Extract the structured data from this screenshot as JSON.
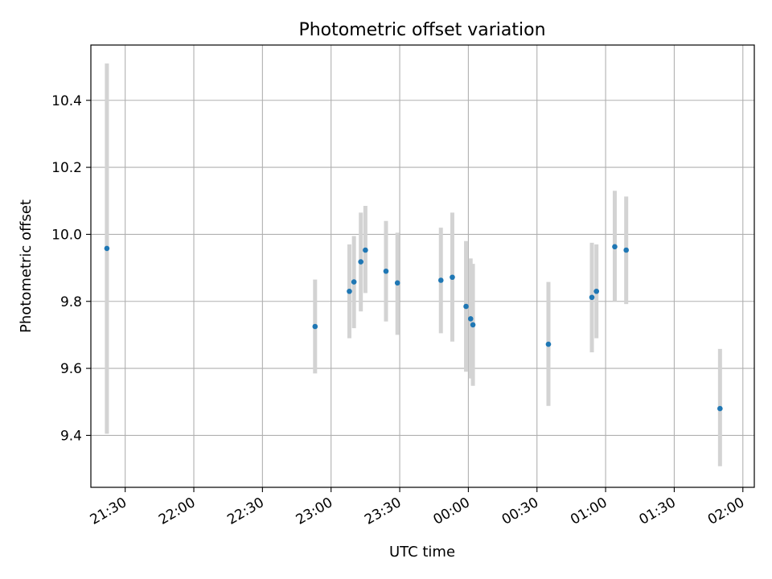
{
  "chart_data": {
    "type": "scatter",
    "title": "Photometric offset variation",
    "xlabel": "UTC time",
    "ylabel": "Photometric offset",
    "x_ticks": [
      "21:30",
      "22:00",
      "22:30",
      "23:00",
      "23:30",
      "00:00",
      "00:30",
      "01:00",
      "01:30",
      "02:00"
    ],
    "y_ticks": [
      "9.4",
      "9.6",
      "9.8",
      "10.0",
      "10.2",
      "10.4"
    ],
    "ylim": [
      9.245,
      10.565
    ],
    "xlim": [
      "21:15",
      "02:05"
    ],
    "grid": true,
    "point_color": "#1f77b4",
    "errorbar_color": "#d3d3d3",
    "points": [
      {
        "x": "21:22",
        "y": 9.958,
        "ylow": 9.405,
        "yhigh": 10.51
      },
      {
        "x": "22:53",
        "y": 9.725,
        "ylow": 9.585,
        "yhigh": 9.865
      },
      {
        "x": "23:08",
        "y": 9.83,
        "ylow": 9.69,
        "yhigh": 9.97
      },
      {
        "x": "23:10",
        "y": 9.858,
        "ylow": 9.72,
        "yhigh": 9.995
      },
      {
        "x": "23:13",
        "y": 9.918,
        "ylow": 9.77,
        "yhigh": 10.065
      },
      {
        "x": "23:15",
        "y": 9.953,
        "ylow": 9.825,
        "yhigh": 10.085
      },
      {
        "x": "23:24",
        "y": 9.89,
        "ylow": 9.74,
        "yhigh": 10.04
      },
      {
        "x": "23:29",
        "y": 9.855,
        "ylow": 9.7,
        "yhigh": 10.005
      },
      {
        "x": "23:48",
        "y": 9.863,
        "ylow": 9.705,
        "yhigh": 10.02
      },
      {
        "x": "23:53",
        "y": 9.872,
        "ylow": 9.68,
        "yhigh": 10.065
      },
      {
        "x": "23:59",
        "y": 9.785,
        "ylow": 9.59,
        "yhigh": 9.98
      },
      {
        "x": "00:01",
        "y": 9.748,
        "ylow": 9.57,
        "yhigh": 9.928
      },
      {
        "x": "00:02",
        "y": 9.73,
        "ylow": 9.548,
        "yhigh": 9.912
      },
      {
        "x": "00:35",
        "y": 9.672,
        "ylow": 9.488,
        "yhigh": 9.858
      },
      {
        "x": "00:54",
        "y": 9.812,
        "ylow": 9.648,
        "yhigh": 9.975
      },
      {
        "x": "00:56",
        "y": 9.83,
        "ylow": 9.69,
        "yhigh": 9.97
      },
      {
        "x": "01:04",
        "y": 9.963,
        "ylow": 9.8,
        "yhigh": 10.13
      },
      {
        "x": "01:09",
        "y": 9.953,
        "ylow": 9.792,
        "yhigh": 10.113
      },
      {
        "x": "01:50",
        "y": 9.48,
        "ylow": 9.308,
        "yhigh": 9.658
      }
    ]
  }
}
